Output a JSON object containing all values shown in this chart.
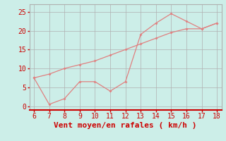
{
  "xlabel": "Vent moyen/en rafales ( km/h )",
  "bg_color": "#cceee8",
  "line_color": "#e08080",
  "grid_color": "#b0b0b0",
  "x_min": 6,
  "x_max": 18,
  "y_min": -1,
  "y_max": 27,
  "yticks": [
    0,
    5,
    10,
    15,
    20,
    25
  ],
  "xticks": [
    6,
    7,
    8,
    9,
    10,
    11,
    12,
    13,
    14,
    15,
    16,
    17,
    18
  ],
  "series1_x": [
    6,
    7,
    8,
    9,
    10,
    11,
    12,
    13,
    14,
    15,
    16,
    17,
    18
  ],
  "series1_y": [
    7.5,
    0.5,
    2.0,
    6.5,
    6.5,
    4.0,
    6.5,
    19.0,
    22.0,
    24.5,
    22.5,
    20.5,
    22.0
  ],
  "series2_x": [
    6,
    7,
    8,
    9,
    10,
    11,
    12,
    13,
    14,
    15,
    16,
    17,
    18
  ],
  "series2_y": [
    7.5,
    8.5,
    10.0,
    11.0,
    12.0,
    13.5,
    15.0,
    16.5,
    18.0,
    19.5,
    20.5,
    20.5,
    22.0
  ],
  "xlabel_color": "#cc0000",
  "tick_color": "#cc0000",
  "axis_color": "#cc0000",
  "spine_bottom_color": "#cc0000",
  "tick_fontsize": 7,
  "xlabel_fontsize": 8
}
